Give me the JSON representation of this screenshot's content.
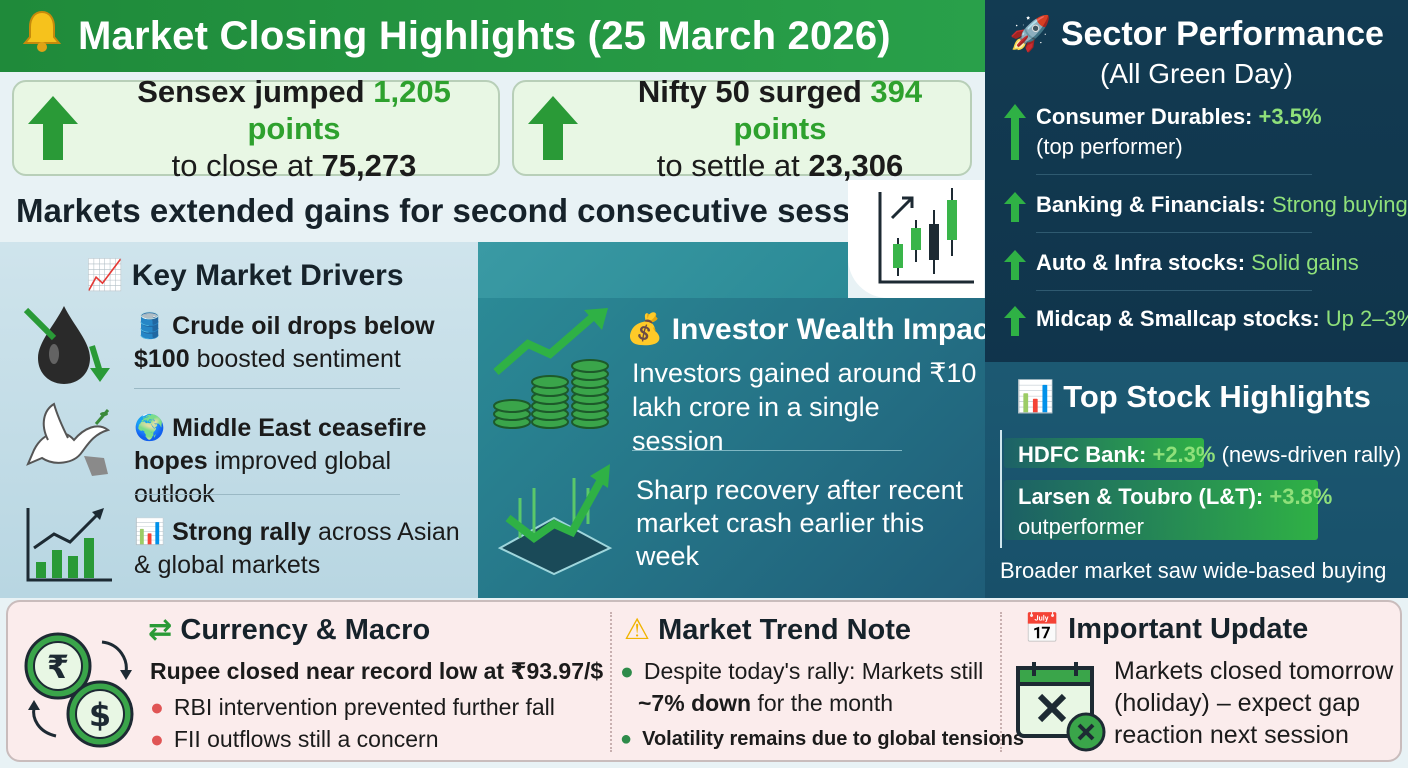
{
  "header": {
    "title": "Market Closing Highlights (25 March 2026)"
  },
  "sensex": {
    "prefix": "Sensex jumped",
    "points": "1,205 points",
    "line2_prefix": "to close at",
    "value": "75,273"
  },
  "nifty": {
    "prefix": "Nifty 50 surged",
    "points": "394 points",
    "line2_prefix": "to settle at",
    "value": "23,306"
  },
  "headline": "Markets extended gains for second consecutive session",
  "drivers": {
    "title": "Key Market Drivers",
    "items": [
      {
        "bold": "Crude oil drops below",
        "bold2": "$100",
        "rest": "boosted sentiment"
      },
      {
        "bold": "Middle East ceasefire",
        "bold2": "hopes",
        "rest": "improved global outlook"
      },
      {
        "bold": "Strong rally",
        "rest1": "across Asian",
        "rest2": "& global markets"
      }
    ]
  },
  "investor": {
    "title": "Investor Wealth Impact",
    "text1": "Investors gained around ₹10 lakh crore in a single session",
    "text2": "Sharp recovery after recent market crash earlier this week"
  },
  "sectors": {
    "title": "Sector Performance",
    "subtitle": "(All Green Day)",
    "items": [
      {
        "name": "Consumer Durables:",
        "value": "+3.5%",
        "note": "(top performer)"
      },
      {
        "name": "Banking & Financials:",
        "value": "Strong buying"
      },
      {
        "name": "Auto & Infra stocks:",
        "value": "Solid gains"
      },
      {
        "name": "Midcap & Smallcap stocks:",
        "value": "Up 2–3%"
      }
    ]
  },
  "stocks": {
    "title": "Top Stock Highlights",
    "items": [
      {
        "name": "HDFC Bank:",
        "value": "+2.3%",
        "note": "(news-driven rally)"
      },
      {
        "name": "Larsen & Toubro (L&T):",
        "value": "+3.8%",
        "note": "outperformer"
      }
    ],
    "broader": "Broader market saw wide-based buying"
  },
  "currency": {
    "title": "Currency & Macro",
    "headline": "Rupee closed near record low at ₹93.97/$",
    "bullets": [
      "RBI intervention prevented further fall",
      "FII outflows still a concern"
    ]
  },
  "trend": {
    "title": "Market Trend Note",
    "line1": "Despite today's rally: Markets still",
    "bold": "~7% down",
    "line2_rest": "for the month",
    "bullet2": "Volatility remains due to global tensions"
  },
  "update": {
    "title": "Important Update",
    "text": [
      "Markets closed tomorrow",
      "(holiday) – expect gap",
      "reaction next session"
    ]
  }
}
